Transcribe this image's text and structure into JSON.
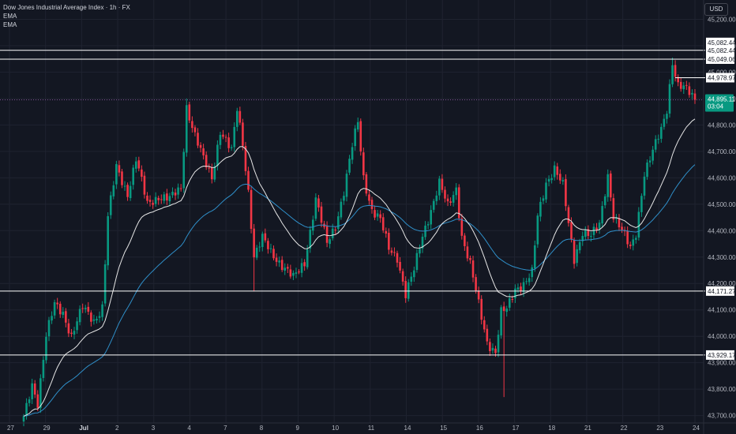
{
  "chart_data": {
    "type": "candlestick",
    "title": "Dow Jones Industrial Average Index · 1h · FX",
    "legend": [
      "EMA",
      "EMA"
    ],
    "currency": "USD",
    "y_ticks": [
      45200,
      45100,
      45000,
      44900,
      44800,
      44700,
      44600,
      44500,
      44400,
      44300,
      44200,
      44100,
      44000,
      43900,
      43800,
      43700
    ],
    "ylim": [
      43672,
      45273
    ],
    "x_ticks": [
      "27",
      "29",
      "Jul",
      "2",
      "3",
      "4",
      "7",
      "8",
      "9",
      "10",
      "11",
      "14",
      "15",
      "16",
      "17",
      "18",
      "21",
      "22",
      "23",
      "24"
    ],
    "horizontal_levels": [
      45082.44,
      45049.06,
      44171.27,
      43929.17
    ],
    "level_labels": [
      "45,082.44",
      "45,082.44",
      "45,049.06",
      "44,171.27",
      "43,929.17"
    ],
    "marker_labels": [
      "44,978.97"
    ],
    "current_price": "44,895.11",
    "countdown": "03:04",
    "candle_count": 240,
    "anchors": [
      [
        0,
        43690
      ],
      [
        3,
        43820
      ],
      [
        5,
        43750
      ],
      [
        8,
        44000
      ],
      [
        11,
        44120
      ],
      [
        14,
        44090
      ],
      [
        17,
        44000
      ],
      [
        21,
        44110
      ],
      [
        25,
        44060
      ],
      [
        28,
        44110
      ],
      [
        30,
        44450
      ],
      [
        33,
        44640
      ],
      [
        37,
        44540
      ],
      [
        40,
        44670
      ],
      [
        44,
        44500
      ],
      [
        48,
        44530
      ],
      [
        52,
        44520
      ],
      [
        56,
        44560
      ],
      [
        58,
        44870
      ],
      [
        61,
        44760
      ],
      [
        64,
        44670
      ],
      [
        67,
        44600
      ],
      [
        70,
        44780
      ],
      [
        74,
        44700
      ],
      [
        76,
        44860
      ],
      [
        78,
        44730
      ],
      [
        80,
        44550
      ],
      [
        82,
        44300
      ],
      [
        85,
        44370
      ],
      [
        88,
        44320
      ],
      [
        92,
        44270
      ],
      [
        96,
        44220
      ],
      [
        100,
        44280
      ],
      [
        104,
        44520
      ],
      [
        108,
        44350
      ],
      [
        111,
        44420
      ],
      [
        114,
        44550
      ],
      [
        117,
        44720
      ],
      [
        119,
        44810
      ],
      [
        121,
        44600
      ],
      [
        124,
        44480
      ],
      [
        127,
        44440
      ],
      [
        130,
        44330
      ],
      [
        133,
        44300
      ],
      [
        136,
        44160
      ],
      [
        139,
        44250
      ],
      [
        142,
        44380
      ],
      [
        145,
        44480
      ],
      [
        148,
        44580
      ],
      [
        151,
        44490
      ],
      [
        154,
        44560
      ],
      [
        156,
        44380
      ],
      [
        159,
        44270
      ],
      [
        162,
        44120
      ],
      [
        165,
        43980
      ],
      [
        168,
        43940
      ],
      [
        170,
        44090
      ],
      [
        172,
        44100
      ],
      [
        175,
        44180
      ],
      [
        178,
        44200
      ],
      [
        181,
        44240
      ],
      [
        183,
        44450
      ],
      [
        186,
        44580
      ],
      [
        189,
        44640
      ],
      [
        192,
        44570
      ],
      [
        194,
        44420
      ],
      [
        196,
        44290
      ],
      [
        199,
        44400
      ],
      [
        202,
        44380
      ],
      [
        205,
        44420
      ],
      [
        208,
        44610
      ],
      [
        210,
        44460
      ],
      [
        213,
        44400
      ],
      [
        216,
        44330
      ],
      [
        218,
        44390
      ],
      [
        221,
        44620
      ],
      [
        224,
        44700
      ],
      [
        227,
        44780
      ],
      [
        229,
        44860
      ],
      [
        231,
        45040
      ],
      [
        233,
        44950
      ],
      [
        235,
        44940
      ],
      [
        237,
        44920
      ],
      [
        239,
        44895
      ]
    ]
  }
}
